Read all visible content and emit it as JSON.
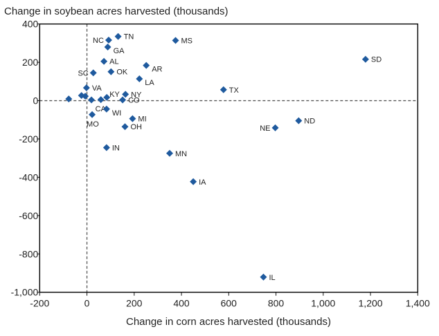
{
  "chart_data": {
    "type": "scatter",
    "title": "Change in soybean acres harvested (thousands)",
    "xlabel": "Change in corn acres harvested (thousands)",
    "ylabel": "Change in soybean acres harvested (thousands)",
    "xlim": [
      -200,
      1400
    ],
    "ylim": [
      -1000,
      400
    ],
    "xticks": [
      -200,
      0,
      200,
      400,
      600,
      800,
      1000,
      1200,
      1400
    ],
    "xtick_labels": [
      "-200",
      "0",
      "200",
      "400",
      "600",
      "800",
      "1,000",
      "1,200",
      "1,400"
    ],
    "yticks": [
      400,
      200,
      0,
      -200,
      -400,
      -600,
      -800,
      -1000
    ],
    "ytick_labels": [
      "400",
      "200",
      "0",
      "-200",
      "-400",
      "-600",
      "-800",
      "-1,000"
    ],
    "grid": false,
    "reference_lines": {
      "x": 0,
      "y": 0,
      "style": "dashed"
    },
    "marker_color": "#1f5a9e",
    "points": [
      {
        "label": "TN",
        "x": 132,
        "y": 335,
        "pos": "right"
      },
      {
        "label": "NC",
        "x": 92,
        "y": 316,
        "pos": "left"
      },
      {
        "label": "GA",
        "x": 88,
        "y": 280,
        "pos": "right-below"
      },
      {
        "label": "AL",
        "x": 72,
        "y": 205,
        "pos": "right"
      },
      {
        "label": "SC",
        "x": 27,
        "y": 145,
        "pos": "left"
      },
      {
        "label": "OK",
        "x": 102,
        "y": 151,
        "pos": "right"
      },
      {
        "label": "AR",
        "x": 251,
        "y": 184,
        "pos": "right-below"
      },
      {
        "label": "LA",
        "x": 222,
        "y": 114,
        "pos": "right-below"
      },
      {
        "label": "MS",
        "x": 375,
        "y": 314,
        "pos": "right"
      },
      {
        "label": "VA",
        "x": -2,
        "y": 67,
        "pos": "right"
      },
      {
        "label": "",
        "x": -77,
        "y": 9,
        "pos": "none"
      },
      {
        "label": "",
        "x": -23,
        "y": 27,
        "pos": "none"
      },
      {
        "label": "",
        "x": -7,
        "y": 23,
        "pos": "none"
      },
      {
        "label": "",
        "x": 19,
        "y": 4,
        "pos": "none"
      },
      {
        "label": "CA",
        "x": 59,
        "y": 5,
        "pos": "below"
      },
      {
        "label": "KY",
        "x": 84,
        "y": 17,
        "pos": "right-above"
      },
      {
        "label": "NY",
        "x": 163,
        "y": 33,
        "pos": "right"
      },
      {
        "label": "CO",
        "x": 151,
        "y": 4,
        "pos": "right"
      },
      {
        "label": "WI",
        "x": 83,
        "y": -44,
        "pos": "right-below"
      },
      {
        "label": "MO",
        "x": 22,
        "y": -73,
        "pos": "below"
      },
      {
        "label": "MI",
        "x": 193,
        "y": -94,
        "pos": "right"
      },
      {
        "label": "OH",
        "x": 161,
        "y": -136,
        "pos": "right"
      },
      {
        "label": "IN",
        "x": 83,
        "y": -245,
        "pos": "right"
      },
      {
        "label": "MN",
        "x": 350,
        "y": -275,
        "pos": "right"
      },
      {
        "label": "IA",
        "x": 450,
        "y": -423,
        "pos": "right"
      },
      {
        "label": "TX",
        "x": 578,
        "y": 57,
        "pos": "right"
      },
      {
        "label": "NE",
        "x": 797,
        "y": -142,
        "pos": "left"
      },
      {
        "label": "ND",
        "x": 896,
        "y": -105,
        "pos": "right"
      },
      {
        "label": "SD",
        "x": 1179,
        "y": 216,
        "pos": "right"
      },
      {
        "label": "IL",
        "x": 747,
        "y": -921,
        "pos": "right"
      }
    ]
  }
}
